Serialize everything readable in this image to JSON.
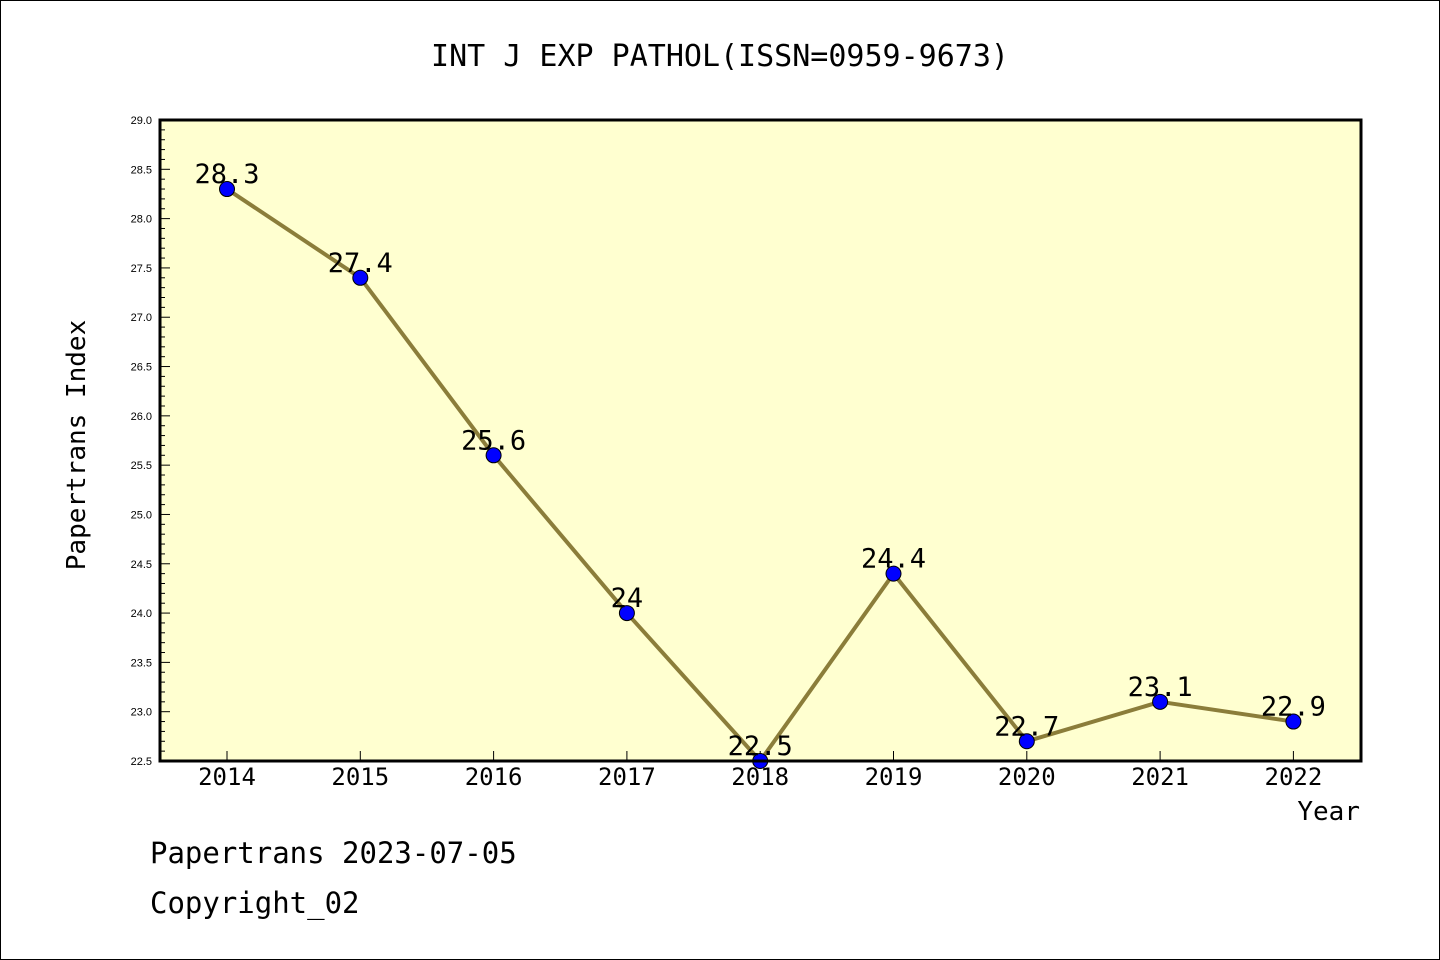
{
  "chart_data": {
    "type": "line",
    "title": "INT J EXP PATHOL(ISSN=0959-9673)",
    "xlabel": "Year",
    "ylabel": "Papertrans Index",
    "categories": [
      "2014",
      "2015",
      "2016",
      "2017",
      "2018",
      "2019",
      "2020",
      "2021",
      "2022"
    ],
    "series": [
      {
        "values": [
          28.3,
          27.4,
          25.6,
          24.0,
          22.5,
          24.4,
          22.7,
          23.1,
          22.9
        ],
        "data_labels": [
          "28.3",
          "27.4",
          "25.6",
          "24",
          "22.5",
          "24.4",
          "22.7",
          "23.1",
          "22.9"
        ]
      }
    ],
    "ylim": [
      22.5,
      29.0
    ],
    "yticks": [
      "22.5",
      "23.0",
      "23.5",
      "24.0",
      "24.5",
      "25.0",
      "25.5",
      "26.0",
      "26.5",
      "27.0",
      "27.5",
      "28.0",
      "28.5",
      "29.0"
    ],
    "grid": false,
    "colors": {
      "plot_background": "#ffffd0",
      "line": "#8b7d3a",
      "marker": "#0000ff"
    }
  },
  "footer": {
    "line1": "Papertrans 2023-07-05",
    "line2": "Copyright_02"
  }
}
